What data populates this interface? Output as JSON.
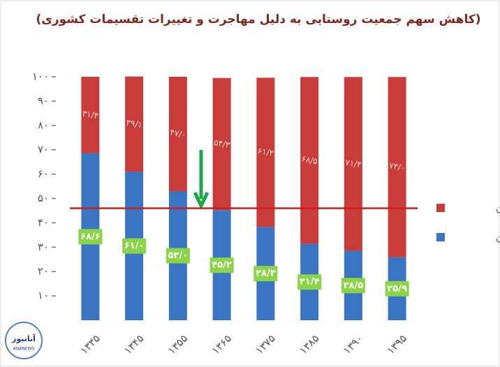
{
  "chart_data": {
    "type": "stacked_bar",
    "title": "(کاهش سهم جمعیت روستایی به دلیل مهاجرت و تغییرات تقسیمات کشوری)",
    "categories": [
      "۱۳۳۵",
      "۱۳۴۵",
      "۱۳۵۵",
      "۱۳۶۵",
      "۱۳۷۵",
      "۱۳۸۵",
      "۱۳۹۰",
      "۱۳۹۵"
    ],
    "series": [
      {
        "name": "روستانشین",
        "color": "#3a75c4",
        "values": [
          68.6,
          61.0,
          53.0,
          45.2,
          38.3,
          31.4,
          28.5,
          25.9
        ],
        "value_labels": [
          "۶۸/۶",
          "۶۱/۰",
          "۵۳/۰",
          "۴۵/۲",
          "۳۸/۳",
          "۳۱/۴",
          "۲۸/۵",
          "۲۵/۹"
        ]
      },
      {
        "name": "شهرنشین",
        "color": "#c83c3a",
        "values": [
          31.4,
          39.1,
          47.0,
          54.3,
          61.3,
          68.5,
          71.4,
          74.0
        ],
        "value_labels": [
          "۳۱/۴",
          "۳۹/۱",
          "۴۷/۰",
          "۵۴/۳",
          "۶۱/۳",
          "۶۸/۵",
          "۷۱/۴",
          "۷۴/۰"
        ]
      }
    ],
    "ylim": [
      0,
      100
    ],
    "yticks": [
      {
        "value": 10,
        "label": "۱۰"
      },
      {
        "value": 20,
        "label": "۲۰"
      },
      {
        "value": 30,
        "label": "۳۰"
      },
      {
        "value": 40,
        "label": "۴۰"
      },
      {
        "value": 50,
        "label": "۵۰"
      },
      {
        "value": 60,
        "label": "۶۰"
      },
      {
        "value": 70,
        "label": "۷۰"
      },
      {
        "value": 80,
        "label": "۸۰"
      },
      {
        "value": 90,
        "label": "۹۰"
      },
      {
        "value": 100,
        "label": "۱۰۰"
      }
    ],
    "reference_line": {
      "value": 46,
      "color": "#d01c1c"
    },
    "legend": "right"
  },
  "logo": {
    "name": "آنانیوز",
    "latin": "ANANEWS"
  }
}
